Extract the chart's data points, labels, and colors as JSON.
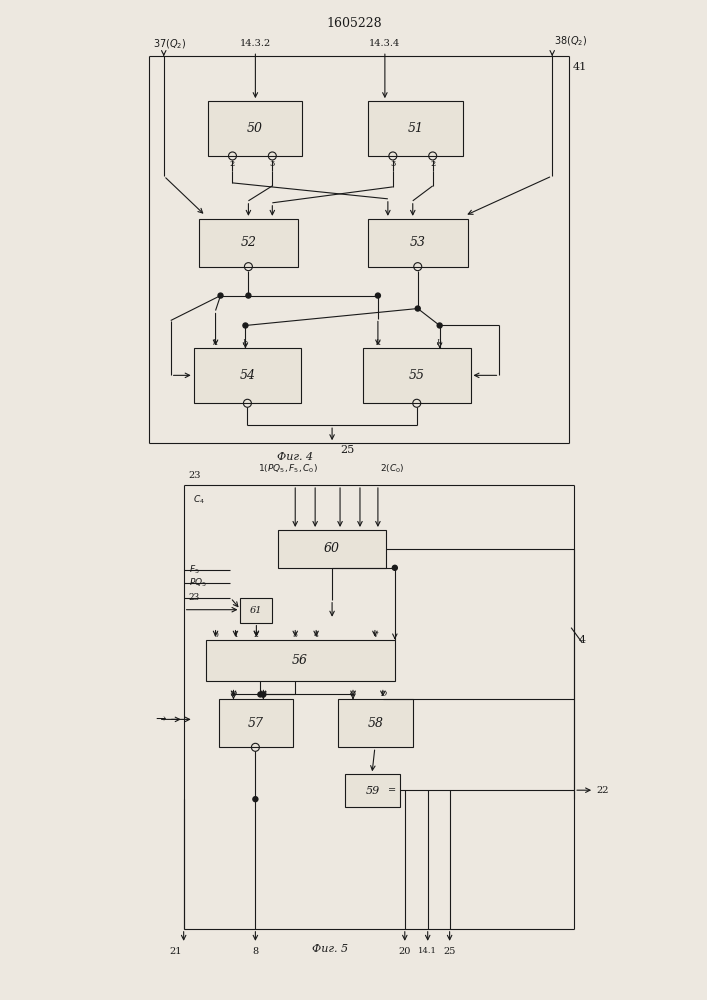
{
  "title": "1605228",
  "fig4_label": "Фиг. 4",
  "fig5_label": "Фиг. 5",
  "bg": "#ede8e0",
  "lc": "#1a1a1a",
  "bc": "#e8e3d8",
  "tc": "#1a1a1a"
}
